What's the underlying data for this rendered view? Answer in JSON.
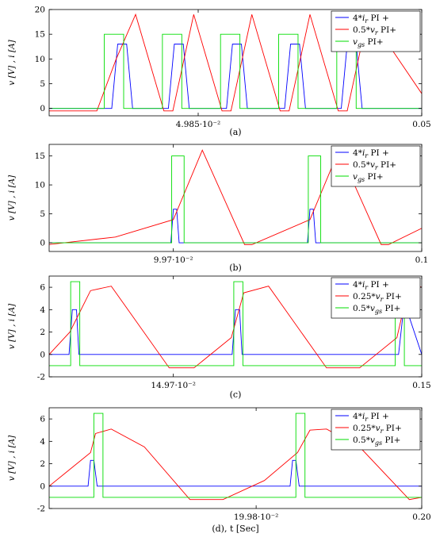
{
  "ylabel_text": "v [V] , i [A]",
  "chart_data": [
    {
      "type": "line",
      "caption": "(a)",
      "xlim": [
        0.04975,
        0.05
      ],
      "ylim": [
        -1.5,
        20
      ],
      "y_ticks": [
        0,
        5,
        10,
        15,
        20
      ],
      "x_ticks": [
        {
          "value": 0.04985,
          "label": "4.985·10⁻²"
        },
        {
          "value": 0.05,
          "label": "0.05"
        }
      ],
      "grid": false,
      "legend_position": "top-right",
      "series": [
        {
          "name": "4*i_r  PI +",
          "color": "#0000ff",
          "x": [
            0.04975,
            0.04978,
            0.049792,
            0.049796,
            0.049802,
            0.049806,
            0.049808,
            0.049823,
            0.04983,
            0.049834,
            0.04984,
            0.049844,
            0.049846,
            0.049862,
            0.049869,
            0.049873,
            0.049879,
            0.049883,
            0.049885,
            0.049901,
            0.049908,
            0.049912,
            0.049918,
            0.049922,
            0.049924,
            0.049939,
            0.049946,
            0.04995,
            0.049956,
            0.04996,
            0.049962,
            0.05
          ],
          "y": [
            0,
            0,
            0,
            13,
            13,
            0,
            0,
            0,
            0,
            13,
            13,
            0,
            0,
            0,
            0,
            13,
            13,
            0,
            0,
            0,
            0,
            13,
            13,
            0,
            0,
            0,
            0,
            13,
            13,
            0,
            0,
            0
          ]
        },
        {
          "name": "0.5*v_r  PI+",
          "color": "#ff0000",
          "x": [
            0.04975,
            0.049782,
            0.049795,
            0.049808,
            0.049827,
            0.049833,
            0.049847,
            0.049866,
            0.049872,
            0.049886,
            0.049905,
            0.049911,
            0.049925,
            0.049944,
            0.04995,
            0.049964,
            0.05
          ],
          "y": [
            -0.5,
            -0.5,
            10,
            19,
            -0.5,
            -0.5,
            19,
            -0.5,
            -0.5,
            19,
            -0.5,
            -0.5,
            19,
            -0.5,
            -0.5,
            19,
            3
          ]
        },
        {
          "name": "v_gs  PI+",
          "color": "#00dd00",
          "x": [
            0.04975,
            0.049787,
            0.049787,
            0.0498,
            0.0498,
            0.049826,
            0.049826,
            0.049839,
            0.049839,
            0.049865,
            0.049865,
            0.049878,
            0.049878,
            0.049904,
            0.049904,
            0.049917,
            0.049917,
            0.049943,
            0.049943,
            0.049956,
            0.049956,
            0.05
          ],
          "y": [
            0,
            0,
            15,
            15,
            0,
            0,
            15,
            15,
            0,
            0,
            15,
            15,
            0,
            0,
            15,
            15,
            0,
            0,
            15,
            15,
            0,
            0
          ]
        }
      ]
    },
    {
      "type": "line",
      "caption": "(b)",
      "xlim": [
        0.09955,
        0.1
      ],
      "ylim": [
        -1.5,
        17
      ],
      "y_ticks": [
        0,
        5,
        10,
        15
      ],
      "x_ticks": [
        {
          "value": 0.0997,
          "label": "9.97·10⁻²"
        },
        {
          "value": 0.1,
          "label": "0.1"
        }
      ],
      "grid": false,
      "legend_position": "top-right",
      "series": [
        {
          "name": "4*i_r  PI +",
          "color": "#0000ff",
          "x": [
            0.09955,
            0.099697,
            0.0997,
            0.099704,
            0.099707,
            0.099715,
            0.099862,
            0.099865,
            0.099869,
            0.099872,
            0.09988,
            0.1
          ],
          "y": [
            0,
            0,
            5.8,
            5.8,
            0,
            0,
            0,
            5.8,
            5.8,
            0,
            0,
            0
          ]
        },
        {
          "name": "0.5*v_r  PI+",
          "color": "#ff0000",
          "x": [
            0.09955,
            0.09963,
            0.0997,
            0.099735,
            0.099786,
            0.099795,
            0.099865,
            0.0999,
            0.099951,
            0.09996,
            0.1
          ],
          "y": [
            -0.3,
            1,
            4,
            16,
            -0.3,
            -0.3,
            4,
            16,
            -0.3,
            -0.3,
            2.5
          ]
        },
        {
          "name": "v_gs  PI+",
          "color": "#00dd00",
          "x": [
            0.09955,
            0.099698,
            0.099698,
            0.099713,
            0.099713,
            0.099863,
            0.099863,
            0.099878,
            0.099878,
            0.1
          ],
          "y": [
            0,
            0,
            15,
            15,
            0,
            0,
            15,
            15,
            0,
            0
          ]
        }
      ]
    },
    {
      "type": "line",
      "caption": "(c)",
      "xlim": [
        0.14955,
        0.15
      ],
      "ylim": [
        -2,
        7
      ],
      "y_ticks": [
        -2,
        0,
        2,
        4,
        6
      ],
      "x_ticks": [
        {
          "value": 0.1497,
          "label": "14.97·10⁻²"
        },
        {
          "value": 0.15,
          "label": "0.15"
        }
      ],
      "grid": false,
      "legend_position": "top-right",
      "series": [
        {
          "name": "4*i_r  PI +",
          "color": "#0000ff",
          "x": [
            0.14955,
            0.149574,
            0.149578,
            0.149583,
            0.149586,
            0.149596,
            0.149771,
            0.149775,
            0.14978,
            0.149783,
            0.14979,
            0.14997,
            0.149972,
            0.149978,
            0.149982,
            0.15
          ],
          "y": [
            0,
            0,
            4,
            4,
            0,
            0,
            0,
            4,
            4,
            0,
            0,
            0,
            0,
            4,
            4,
            0
          ]
        },
        {
          "name": "0.25*v_r  PI+",
          "color": "#ff0000",
          "x": [
            0.14955,
            0.149575,
            0.1496,
            0.149625,
            0.149695,
            0.149725,
            0.14977,
            0.149785,
            0.149815,
            0.149885,
            0.149925,
            0.14997,
            0.149985,
            0.15
          ],
          "y": [
            0,
            2,
            5.7,
            6.1,
            -1.2,
            -1.2,
            1.5,
            5.5,
            6.1,
            -1.2,
            -1.2,
            1.5,
            6.3,
            6
          ]
        },
        {
          "name": "0.5*v_gs  PI+",
          "color": "#00dd00",
          "x": [
            0.14955,
            0.149576,
            0.149576,
            0.149587,
            0.149587,
            0.149773,
            0.149773,
            0.149784,
            0.149784,
            0.149968,
            0.149968,
            0.149979,
            0.149979,
            0.15
          ],
          "y": [
            -1,
            -1,
            6.5,
            6.5,
            -1,
            -1,
            6.5,
            6.5,
            -1,
            -1,
            6.5,
            6.5,
            -1,
            -1
          ]
        }
      ]
    },
    {
      "type": "line",
      "caption": "(d), t [Sec]",
      "xlim": [
        0.19955,
        0.2
      ],
      "ylim": [
        -2,
        7
      ],
      "y_ticks": [
        -2,
        0,
        2,
        4,
        6
      ],
      "x_ticks": [
        {
          "value": 0.1998,
          "label": "19.98·10⁻²"
        },
        {
          "value": 0.2,
          "label": "0.20"
        }
      ],
      "grid": false,
      "legend_position": "top-right",
      "series": [
        {
          "name": "4*i_r  PI +",
          "color": "#0000ff",
          "x": [
            0.19955,
            0.199597,
            0.1996,
            0.199604,
            0.199608,
            0.19962,
            0.199841,
            0.199844,
            0.199848,
            0.199852,
            0.19986,
            0.2
          ],
          "y": [
            0,
            0,
            2.3,
            2.3,
            0,
            0,
            0,
            2.3,
            2.3,
            0,
            0,
            0
          ]
        },
        {
          "name": "0.25*v_r  PI+",
          "color": "#ff0000",
          "x": [
            0.19955,
            0.19957,
            0.1996,
            0.199606,
            0.199625,
            0.199665,
            0.19972,
            0.19976,
            0.19981,
            0.19985,
            0.199865,
            0.199885,
            0.199925,
            0.199985,
            0.2
          ],
          "y": [
            0,
            1.2,
            3,
            4.7,
            5.1,
            3.5,
            -1.2,
            -1.2,
            0.5,
            3,
            5,
            5.1,
            3.5,
            -1.2,
            -1
          ]
        },
        {
          "name": "0.5*v_gs  PI+",
          "color": "#00dd00",
          "x": [
            0.19955,
            0.199604,
            0.199604,
            0.199615,
            0.199615,
            0.199848,
            0.199848,
            0.199859,
            0.199859,
            0.2
          ],
          "y": [
            -1,
            -1,
            6.5,
            6.5,
            -1,
            -1,
            6.5,
            6.5,
            -1,
            -1
          ]
        }
      ]
    }
  ]
}
